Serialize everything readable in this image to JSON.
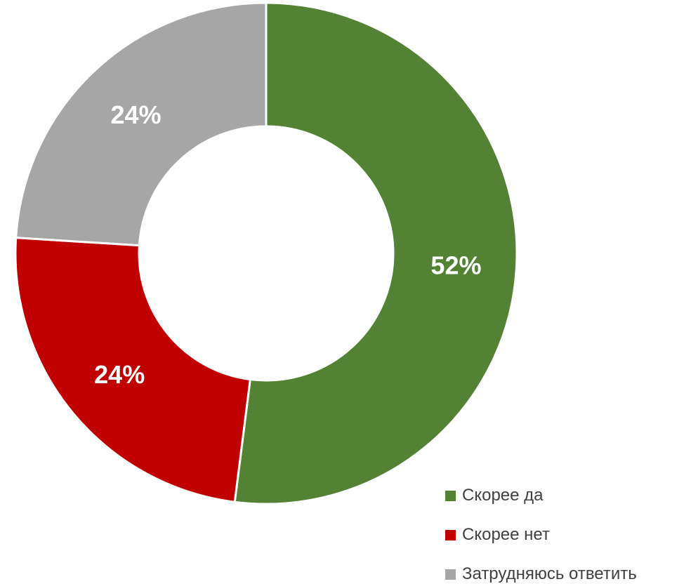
{
  "chart_data": {
    "type": "pie",
    "variant": "donut",
    "categories": [
      "Скорее да",
      "Скорее нет",
      "Затрудняюсь ответить"
    ],
    "values": [
      52,
      24,
      24
    ],
    "labels": [
      "52%",
      "24%",
      "24%"
    ],
    "colors": [
      "#548235",
      "#C00000",
      "#A6A6A6"
    ],
    "legend_position": "bottom-right",
    "title": ""
  }
}
